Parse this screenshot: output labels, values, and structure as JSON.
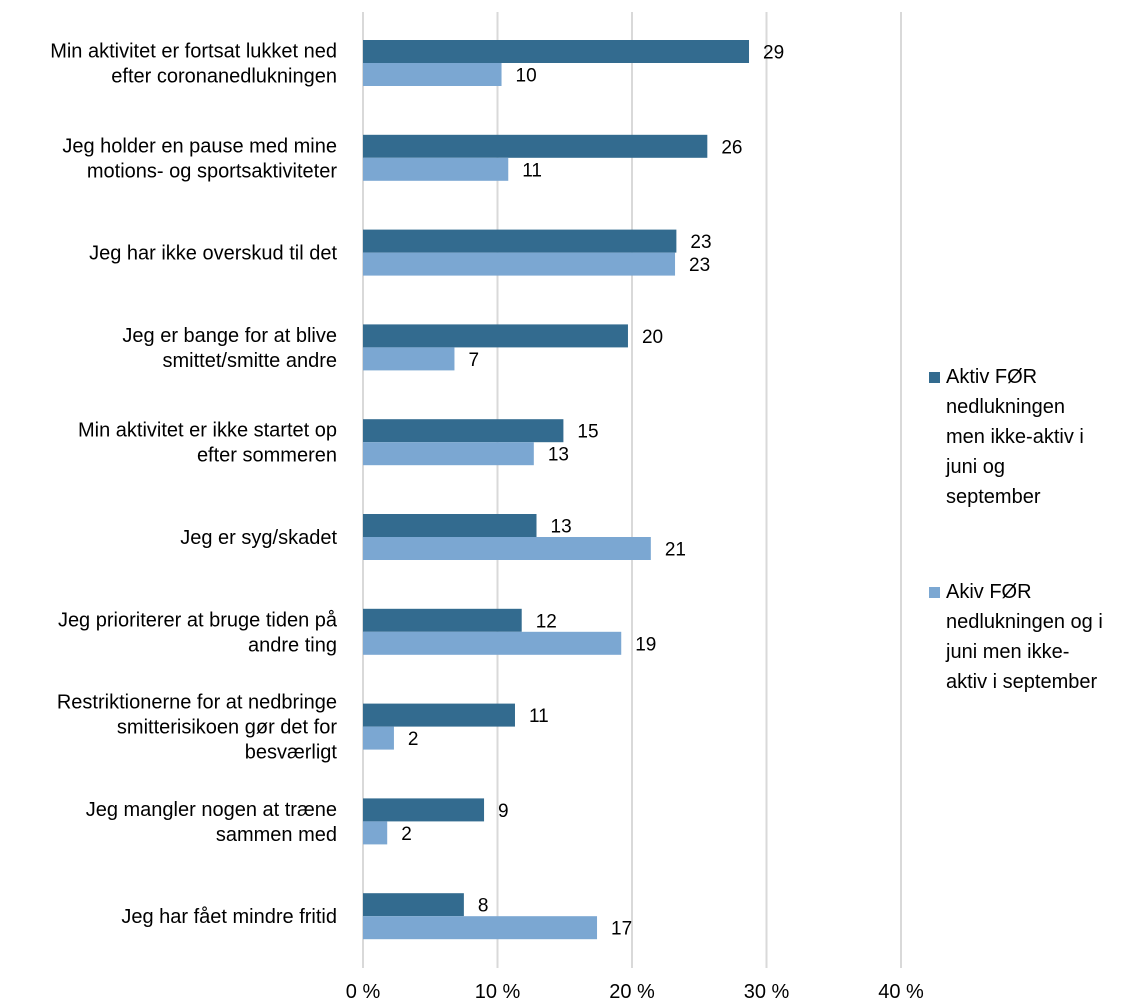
{
  "chart_data": {
    "type": "bar",
    "orientation": "horizontal",
    "categories": [
      [
        "Min aktivitet er fortsat lukket ned",
        "efter coronanedlukningen"
      ],
      [
        "Jeg holder en pause med mine",
        "motions- og sportsaktiviteter"
      ],
      [
        "Jeg har ikke overskud til det"
      ],
      [
        "Jeg er bange for at blive",
        "smittet/smitte andre"
      ],
      [
        "Min aktivitet er ikke startet op",
        "efter sommeren"
      ],
      [
        "Jeg er syg/skadet"
      ],
      [
        "Jeg prioriterer at bruge tiden på",
        "andre ting"
      ],
      [
        "Restriktionerne for at nedbringe",
        "smitterisikoen gør det for",
        "besværligt"
      ],
      [
        "Jeg mangler nogen at træne",
        "sammen med"
      ],
      [
        "Jeg har fået mindre fritid"
      ]
    ],
    "series": [
      {
        "name": [
          "Aktiv FØR",
          "nedlukningen",
          "men ikke-aktiv i",
          "juni og",
          "september"
        ],
        "color": "#336b8f",
        "values": [
          28.7,
          25.6,
          23.3,
          19.7,
          14.9,
          12.9,
          11.8,
          11.3,
          9.0,
          7.5
        ],
        "labels": [
          "29",
          "26",
          "23",
          "20",
          "15",
          "13",
          "12",
          "11",
          "9",
          "8"
        ]
      },
      {
        "name": [
          "Akiv FØR",
          "nedlukningen og i",
          "juni men ikke-",
          "aktiv i september"
        ],
        "color": "#7ba7d2",
        "values": [
          10.3,
          10.8,
          23.2,
          6.8,
          12.7,
          21.4,
          19.2,
          2.3,
          1.8,
          17.4
        ],
        "labels": [
          "10",
          "11",
          "23",
          "7",
          "13",
          "21",
          "19",
          "2",
          "2",
          "17"
        ]
      }
    ],
    "x_ticks": [
      "0 %",
      "10 %",
      "20 %",
      "30 %",
      "40 %"
    ],
    "xlim": [
      0,
      40
    ],
    "grid": "vertical",
    "legend": "right"
  }
}
